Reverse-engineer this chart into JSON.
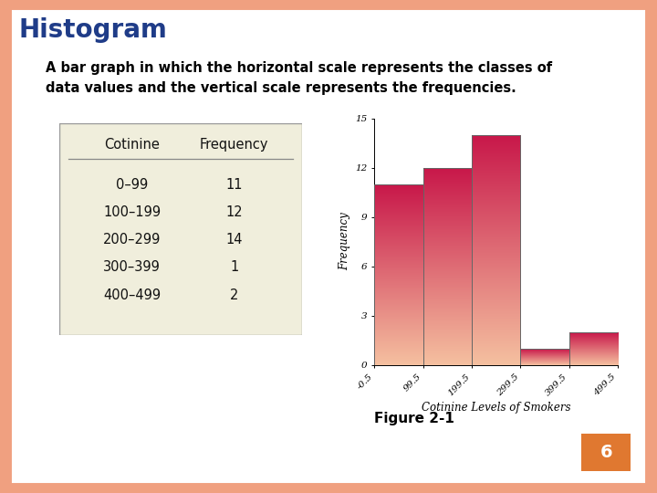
{
  "title": "Histogram",
  "subtitle": "A bar graph in which the horizontal scale represents the classes of\ndata values and the vertical scale represents the frequencies.",
  "title_color": "#1f3c88",
  "subtitle_color": "#000000",
  "background_color": "#ffffff",
  "border_color": "#f0a080",
  "table": {
    "header": [
      "Cotinine",
      "Frequency"
    ],
    "rows": [
      [
        "0–99",
        "11"
      ],
      [
        "100–199",
        "12"
      ],
      [
        "200–299",
        "14"
      ],
      [
        "300–399",
        "1"
      ],
      [
        "400–499",
        "2"
      ]
    ],
    "bg_color": "#f0eedc",
    "border_color": "#999999"
  },
  "hist": {
    "bin_edges": [
      -0.5,
      99.5,
      199.5,
      299.5,
      399.5,
      499.5
    ],
    "frequencies": [
      11,
      12,
      14,
      1,
      2
    ],
    "xlabel": "Cotinine Levels of Smokers",
    "ylabel": "Frequency",
    "yticks": [
      0,
      3,
      6,
      9,
      12,
      15
    ],
    "ylim": [
      0,
      15
    ],
    "bar_color_top": "#c8184a",
    "bar_color_bottom": "#f5c0a0",
    "figure_caption": "Figure 2-1",
    "page_num": "6",
    "page_num_bg": "#e07830"
  }
}
